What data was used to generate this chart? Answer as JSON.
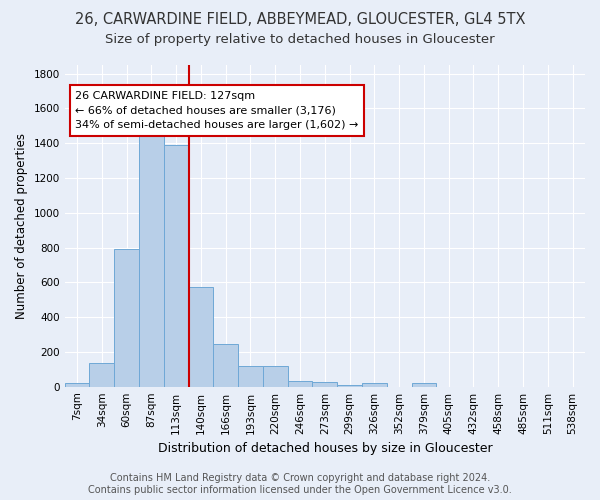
{
  "title": "26, CARWARDINE FIELD, ABBEYMEAD, GLOUCESTER, GL4 5TX",
  "subtitle": "Size of property relative to detached houses in Gloucester",
  "xlabel": "Distribution of detached houses by size in Gloucester",
  "ylabel": "Number of detached properties",
  "categories": [
    "7sqm",
    "34sqm",
    "60sqm",
    "87sqm",
    "113sqm",
    "140sqm",
    "166sqm",
    "193sqm",
    "220sqm",
    "246sqm",
    "273sqm",
    "299sqm",
    "326sqm",
    "352sqm",
    "379sqm",
    "405sqm",
    "432sqm",
    "458sqm",
    "485sqm",
    "511sqm",
    "538sqm"
  ],
  "values": [
    20,
    135,
    790,
    1480,
    1390,
    575,
    245,
    120,
    120,
    35,
    25,
    10,
    20,
    0,
    20,
    0,
    0,
    0,
    0,
    0,
    0
  ],
  "bar_color": "#b8cfe8",
  "bar_edge_color": "#6fa8d6",
  "vline_color": "#cc0000",
  "annotation_line1": "26 CARWARDINE FIELD: 127sqm",
  "annotation_line2": "← 66% of detached houses are smaller (3,176)",
  "annotation_line3": "34% of semi-detached houses are larger (1,602) →",
  "annotation_box_color": "#ffffff",
  "annotation_box_edge_color": "#cc0000",
  "ylim": [
    0,
    1850
  ],
  "yticks": [
    0,
    200,
    400,
    600,
    800,
    1000,
    1200,
    1400,
    1600,
    1800
  ],
  "bg_color": "#e8eef8",
  "plot_bg_color": "#e8eef8",
  "footer_text": "Contains HM Land Registry data © Crown copyright and database right 2024.\nContains public sector information licensed under the Open Government Licence v3.0.",
  "title_fontsize": 10.5,
  "subtitle_fontsize": 9.5,
  "xlabel_fontsize": 9,
  "ylabel_fontsize": 8.5,
  "tick_fontsize": 7.5,
  "annotation_fontsize": 8,
  "footer_fontsize": 7
}
